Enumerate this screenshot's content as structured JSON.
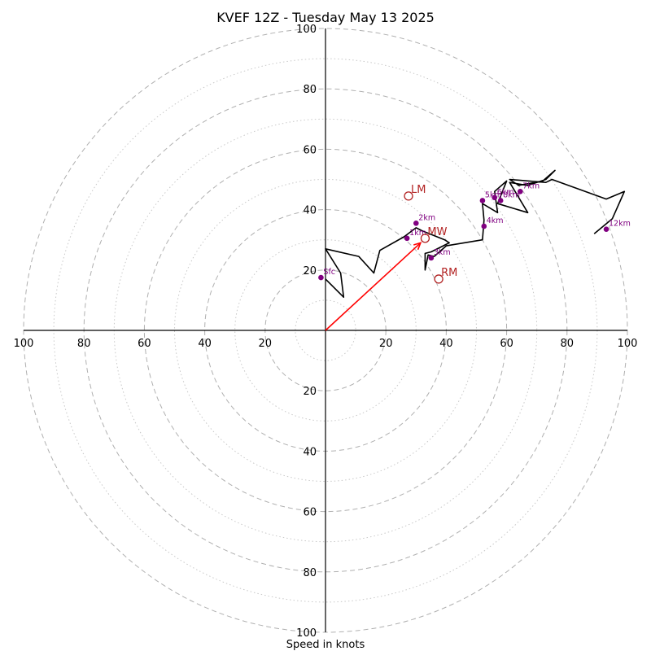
{
  "chart_data": {
    "type": "hodograph",
    "title": "KVEF 12Z - Tuesday May 13 2025",
    "xlabel": "Speed in knots",
    "rings_major": [
      20,
      40,
      60,
      80,
      100
    ],
    "rings_minor": [
      10,
      30,
      50,
      70,
      90
    ],
    "ticks": [
      20,
      40,
      60,
      80,
      100
    ],
    "range": 100,
    "trace": [
      [
        0,
        17
      ],
      [
        6,
        11
      ],
      [
        5,
        19
      ],
      [
        0,
        27
      ],
      [
        11,
        24.5
      ],
      [
        16,
        19
      ],
      [
        18,
        26.5
      ],
      [
        26,
        31
      ],
      [
        30,
        34
      ],
      [
        32,
        33
      ],
      [
        39.5,
        30
      ],
      [
        41,
        29
      ],
      [
        35,
        26
      ],
      [
        33,
        25.5
      ],
      [
        33,
        20
      ],
      [
        34,
        25
      ],
      [
        36,
        24.5
      ],
      [
        40,
        28
      ],
      [
        52,
        30
      ],
      [
        52.5,
        36.5
      ],
      [
        52,
        42
      ],
      [
        57,
        39
      ],
      [
        56,
        46
      ],
      [
        60,
        49.5
      ],
      [
        57,
        42
      ],
      [
        67,
        39
      ],
      [
        61,
        49
      ],
      [
        67,
        48
      ],
      [
        73,
        50
      ],
      [
        76,
        53
      ],
      [
        72,
        49.5
      ],
      [
        64,
        48
      ],
      [
        61,
        50
      ],
      [
        73,
        49
      ],
      [
        75,
        50
      ],
      [
        93,
        43.5
      ],
      [
        99,
        46
      ],
      [
        95,
        37
      ],
      [
        89,
        32
      ]
    ],
    "points": [
      {
        "label": "Sfc",
        "u": -1.5,
        "v": 17.5
      },
      {
        "label": "1km",
        "u": 27,
        "v": 30.5
      },
      {
        "label": "2km",
        "u": 30,
        "v": 35.5
      },
      {
        "label": "3km",
        "u": 35,
        "v": 24
      },
      {
        "label": "4km",
        "u": 52.5,
        "v": 34.5
      },
      {
        "label": "5km",
        "u": 52,
        "v": 43
      },
      {
        "label": "6km",
        "u": 56,
        "v": 44
      },
      {
        "label": "8km",
        "u": 58,
        "v": 43
      },
      {
        "label": "7km",
        "u": 64.5,
        "v": 46
      },
      {
        "label": "12km",
        "u": 93,
        "v": 33.5
      }
    ],
    "motions": [
      {
        "label": "LM",
        "u": 27.5,
        "v": 44.5
      },
      {
        "label": "MW",
        "u": 33,
        "v": 30.5
      },
      {
        "label": "RM",
        "u": 37.5,
        "v": 17
      }
    ],
    "storm_vector": {
      "u": 31.5,
      "v": 29
    },
    "colors": {
      "trace": "#000000",
      "points": "#800080",
      "motions": "#b22222",
      "storm_vector": "#ff0000"
    }
  }
}
